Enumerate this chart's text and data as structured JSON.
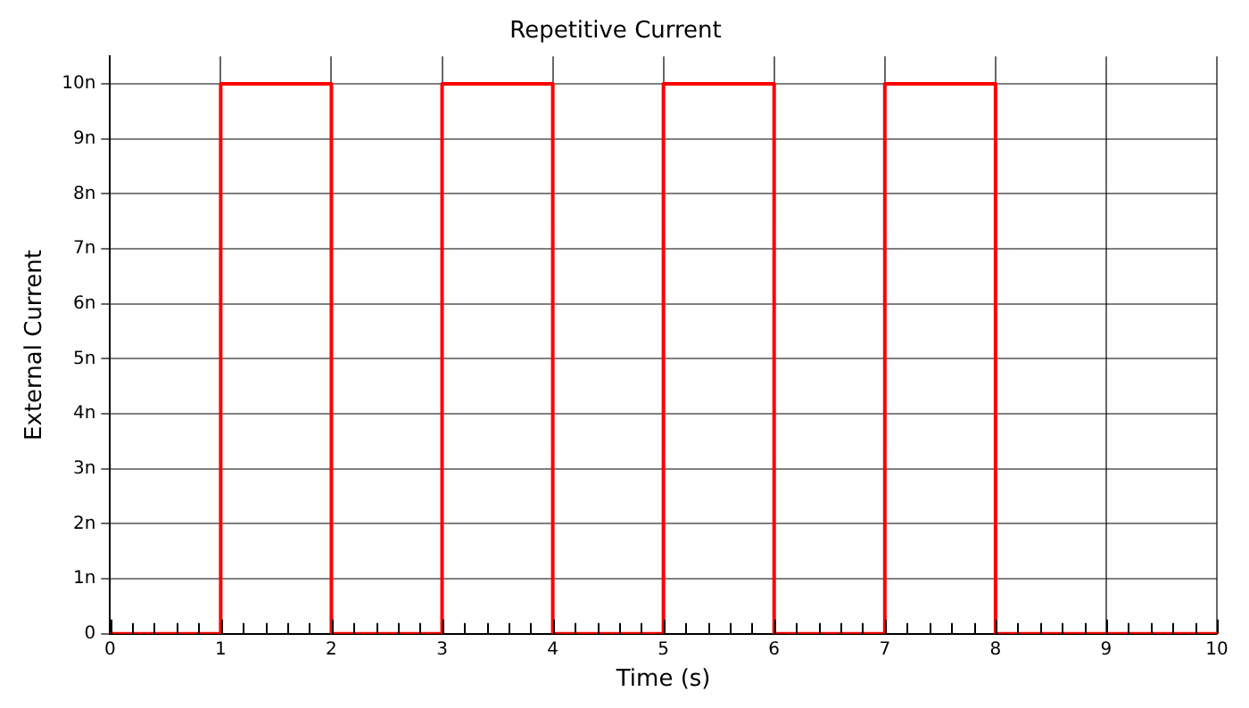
{
  "chart_data": {
    "type": "step",
    "title": "Repetitive Current",
    "xlabel": "Time (s)",
    "ylabel": "External Current",
    "x": [
      0,
      1,
      2,
      3,
      4,
      5,
      6,
      7,
      8,
      10
    ],
    "series": [
      {
        "color": "#ff0000",
        "values": [
          0,
          10,
          0,
          10,
          0,
          10,
          0,
          10,
          0,
          0
        ]
      }
    ],
    "xlim": [
      0,
      10
    ],
    "xticks": [
      0,
      {
        "value": 0.2,
        "label": null
      },
      {
        "value": 0.4,
        "label": null
      },
      {
        "value": 0.6,
        "label": null
      },
      {
        "value": 0.8,
        "label": null
      },
      1,
      {
        "value": 1.2,
        "label": null
      },
      {
        "value": 1.4,
        "label": null
      },
      {
        "value": 1.6,
        "label": null
      },
      {
        "value": 1.8,
        "label": null
      },
      2,
      {
        "value": 2.2,
        "label": null
      },
      {
        "value": 2.4,
        "label": null
      },
      {
        "value": 2.6,
        "label": null
      },
      {
        "value": 2.8,
        "label": null
      },
      3,
      {
        "value": 3.2,
        "label": null
      },
      {
        "value": 3.4,
        "label": null
      },
      {
        "value": 3.6,
        "label": null
      },
      {
        "value": 3.8,
        "label": null
      },
      4,
      {
        "value": 4.2,
        "label": null
      },
      {
        "value": 4.4,
        "label": null
      },
      {
        "value": 4.6,
        "label": null
      },
      {
        "value": 4.8,
        "label": null
      },
      5,
      {
        "value": 5.2,
        "label": null
      },
      {
        "value": 5.4,
        "label": null
      },
      {
        "value": 5.6,
        "label": null
      },
      {
        "value": 5.8,
        "label": null
      },
      6,
      {
        "value": 6.2,
        "label": null
      },
      {
        "value": 6.4,
        "label": null
      },
      {
        "value": 6.6,
        "label": null
      },
      {
        "value": 6.8,
        "label": null
      },
      7,
      {
        "value": 7.2,
        "label": null
      },
      {
        "value": 7.4,
        "label": null
      },
      {
        "value": 7.6,
        "label": null
      },
      {
        "value": 7.8,
        "label": null
      },
      8,
      {
        "value": 8.2,
        "label": null
      },
      {
        "value": 8.4,
        "label": null
      },
      {
        "value": 8.6,
        "label": null
      },
      {
        "value": 8.8,
        "label": null
      },
      9,
      {
        "value": 9.2,
        "label": null
      },
      {
        "value": 9.4,
        "label": null
      },
      {
        "value": 9.6,
        "label": null
      },
      {
        "value": 9.8,
        "label": null
      },
      10
    ],
    "ylim": [
      0,
      10.5
    ],
    "yticks": [
      0,
      {
        "value": 1,
        "label": "1n"
      },
      {
        "value": 2,
        "label": "2n"
      },
      {
        "value": 3,
        "label": "3n"
      },
      {
        "value": 4,
        "label": "4n"
      },
      {
        "value": 5,
        "label": "5n"
      },
      {
        "value": 6,
        "label": "6n"
      },
      {
        "value": 7,
        "label": "7n"
      },
      {
        "value": 8,
        "label": "8n"
      },
      {
        "value": 9,
        "label": "9n"
      },
      {
        "value": 10,
        "label": "10n"
      }
    ],
    "grid": true,
    "legend": false,
    "marker": "none",
    "line_style": "solid"
  }
}
